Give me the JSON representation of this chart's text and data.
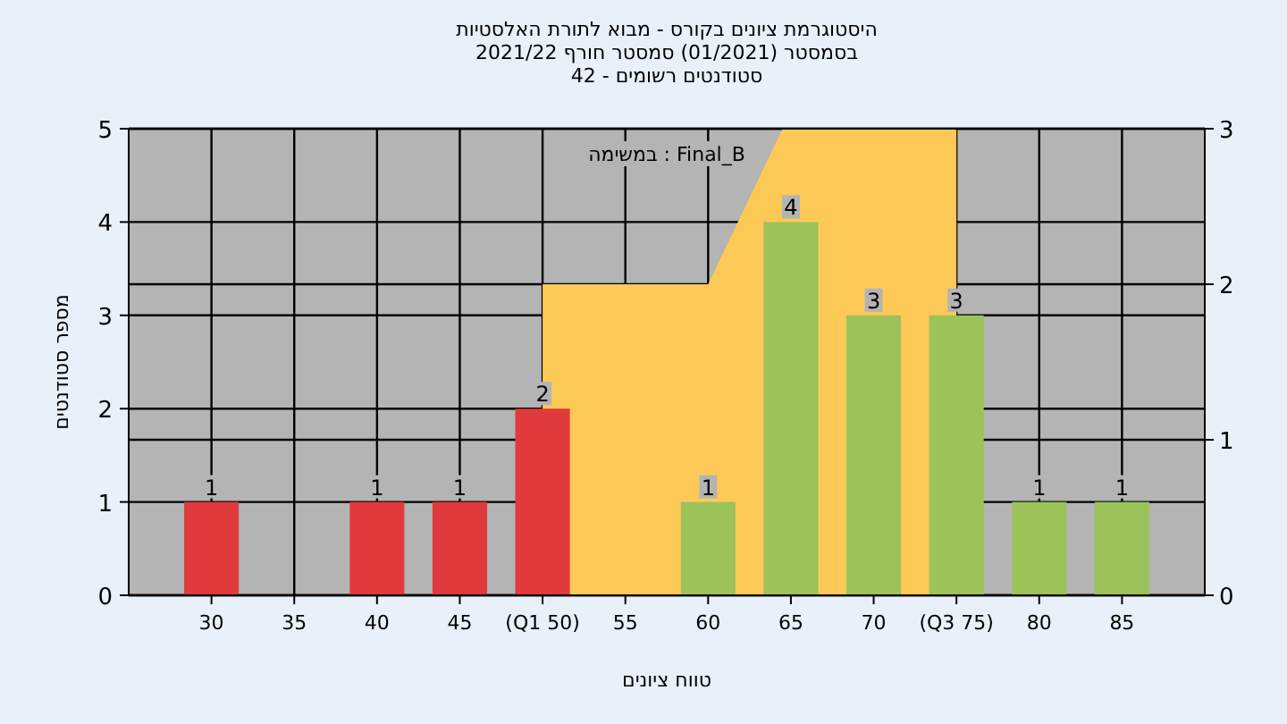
{
  "chart_data": {
    "type": "bar",
    "title": "היסטוגרמת ציונים בקורס - מבוא לתורת האלסטיות",
    "subtitle": "בסמסטר  (01/2021)  סמסטר חורף 2021/22",
    "annotations": [
      "סטודנטים רשומים - 42",
      "Final_B : במשימה"
    ],
    "xlabel": "טווח ציונים",
    "ylabel": "מספר סטודנטים",
    "xlim": [
      25,
      90
    ],
    "xticks": [
      30,
      35,
      40,
      45,
      {
        "value": 50,
        "label": "(Q1 50)"
      },
      55,
      60,
      65,
      70,
      {
        "value": 75,
        "label": "(Q3 75)"
      },
      80,
      85
    ],
    "ylim": [
      0,
      5
    ],
    "yticks": [
      0,
      1,
      2,
      3,
      4,
      5
    ],
    "y2lim": [
      0,
      3
    ],
    "y2ticks": [
      0,
      1,
      2,
      3
    ],
    "grid": true,
    "series": [
      {
        "type": "area",
        "axis": "y2",
        "color": "#fdc956",
        "x": [
          50,
          60,
          64.5,
          75
        ],
        "values": [
          2,
          2,
          3,
          3
        ]
      },
      {
        "x": [
          30,
          40,
          45,
          50,
          60,
          65,
          70,
          75,
          80,
          85
        ],
        "values": [
          1,
          1,
          1,
          2,
          1,
          4,
          3,
          3,
          1,
          1
        ],
        "value_labels": [
          "1",
          "1",
          "1",
          "2",
          "1",
          "4",
          "3",
          "3",
          "1",
          "1"
        ],
        "colors": [
          "#e03a3c",
          "#e03a3c",
          "#e03a3c",
          "#e03a3c",
          "#9cc25a",
          "#9cc25a",
          "#9cc25a",
          "#9cc25a",
          "#9cc25a",
          "#9cc25a"
        ]
      }
    ]
  }
}
